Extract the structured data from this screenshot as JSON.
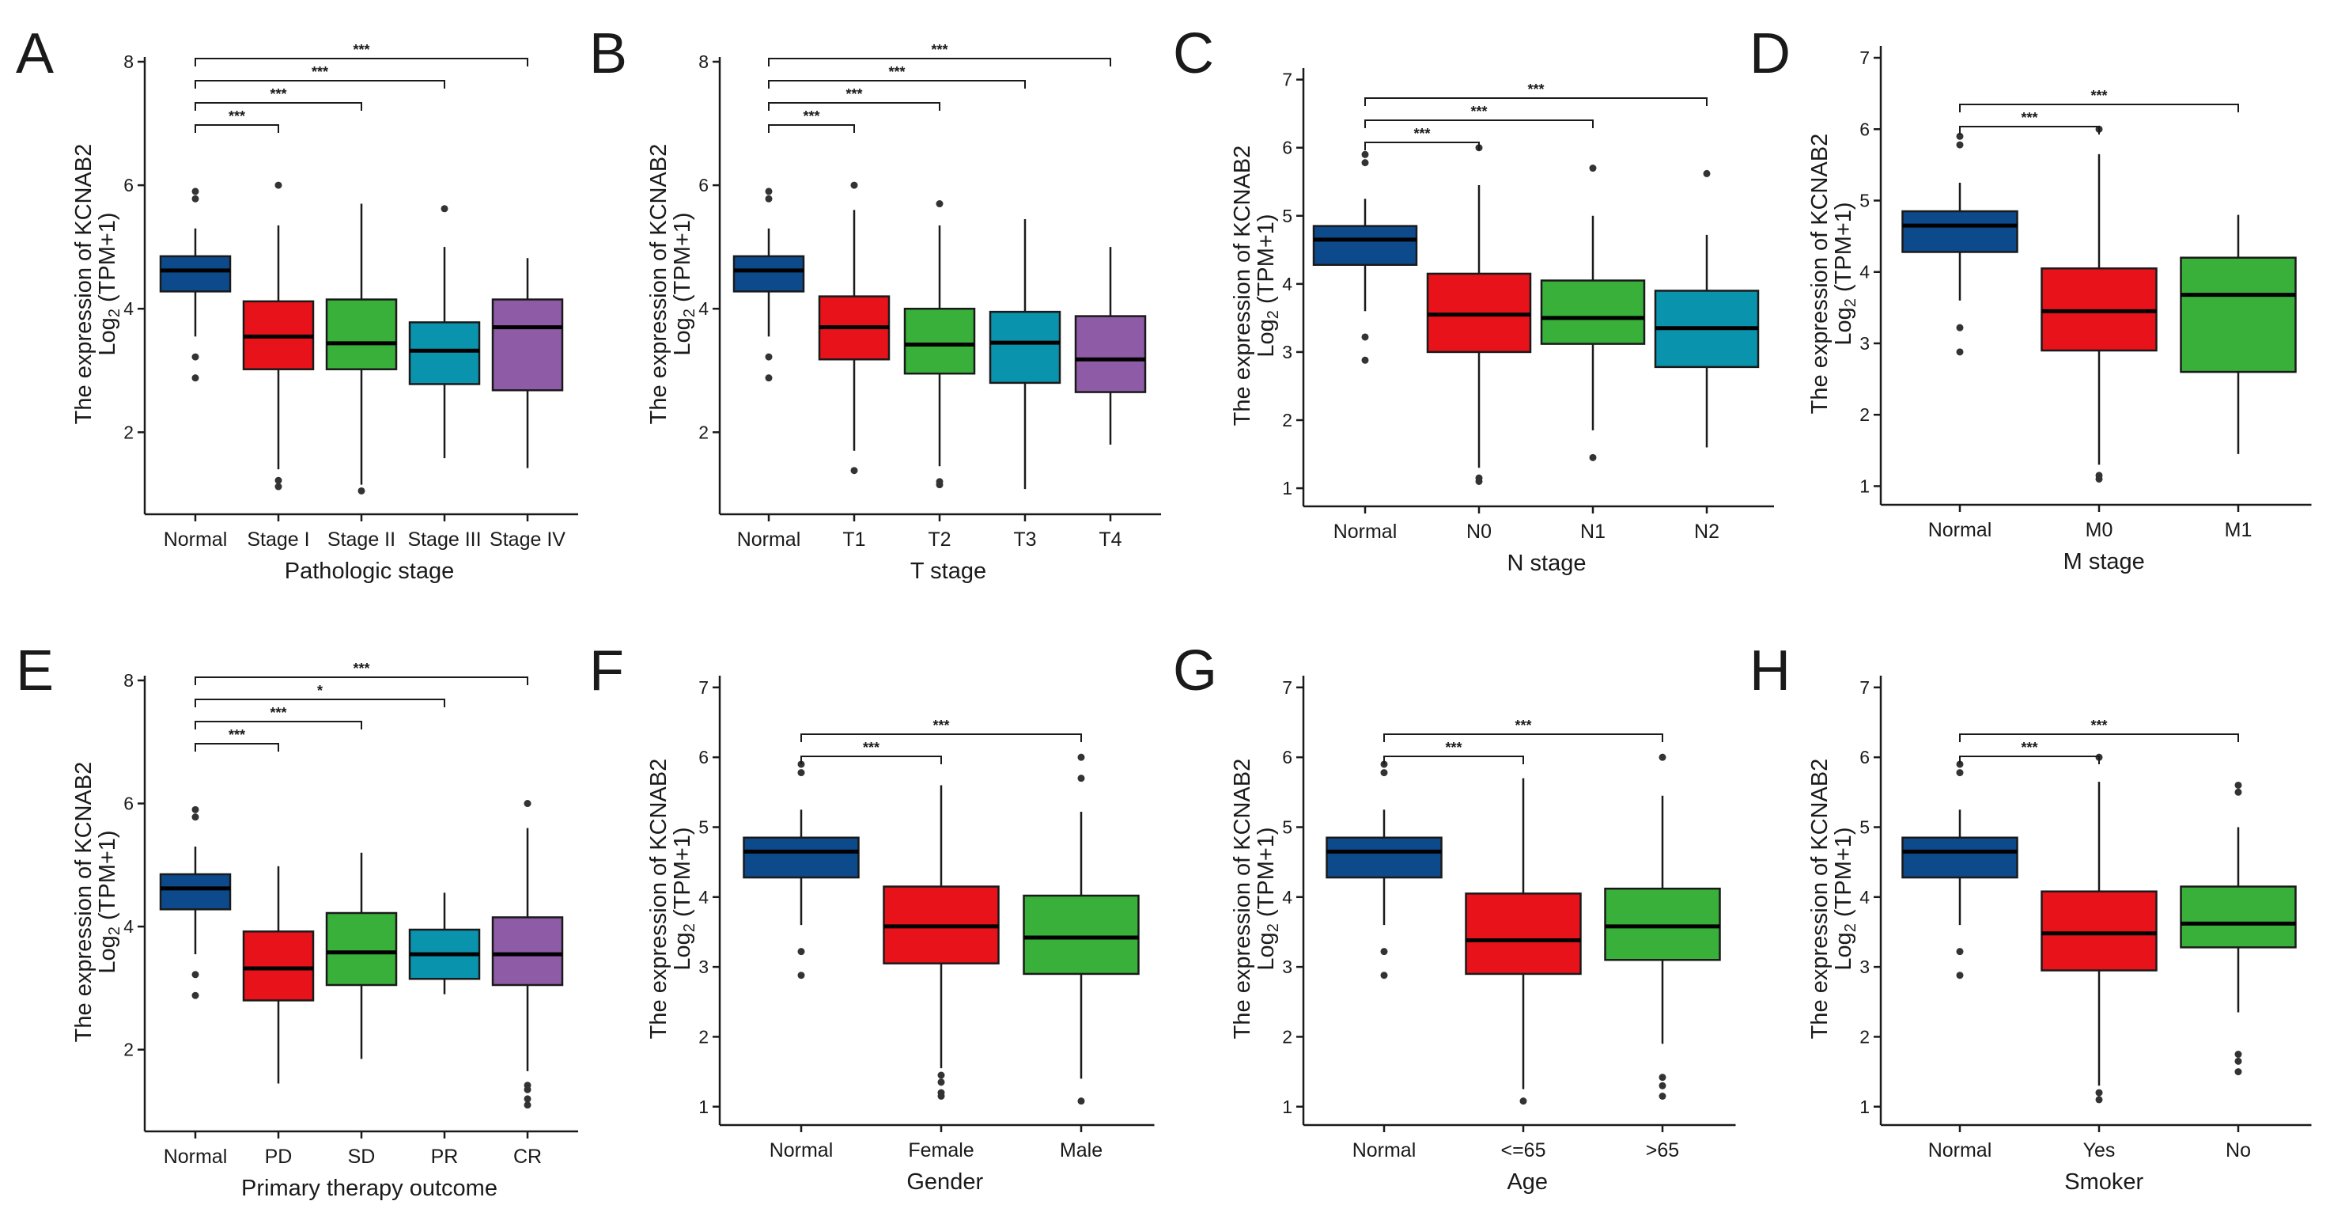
{
  "colors": {
    "normal": "#0d4a8c",
    "red": "#e8121a",
    "green": "#38b03a",
    "teal": "#0a93ad",
    "purple": "#8e5ba6"
  },
  "chart_data": [
    {
      "panel": "A",
      "type": "boxplot",
      "ylabel": "The expression of KCNAB2",
      "ylabel_sub": "Log2 (TPM+1)",
      "xlabel": "Pathologic stage",
      "ylim": [
        0.8,
        8
      ],
      "yticks": [
        2,
        4,
        6,
        8
      ],
      "categories": [
        "Normal",
        "Stage I",
        "Stage II",
        "Stage III",
        "Stage IV"
      ],
      "fill_keys": [
        "normal",
        "red",
        "green",
        "teal",
        "purple"
      ],
      "boxes": [
        {
          "q1": 4.28,
          "median": 4.62,
          "q3": 4.85,
          "lower": 3.55,
          "upper": 5.3,
          "outliers": [
            2.88,
            3.22,
            5.78,
            5.9
          ]
        },
        {
          "q1": 3.02,
          "median": 3.55,
          "q3": 4.12,
          "lower": 1.4,
          "upper": 5.35,
          "outliers": [
            1.12,
            1.22,
            6.0
          ]
        },
        {
          "q1": 3.02,
          "median": 3.44,
          "q3": 4.15,
          "lower": 1.15,
          "upper": 5.7,
          "outliers": [
            1.05
          ]
        },
        {
          "q1": 2.78,
          "median": 3.32,
          "q3": 3.78,
          "lower": 1.58,
          "upper": 5.0,
          "outliers": [
            5.62
          ]
        },
        {
          "q1": 2.68,
          "median": 3.7,
          "q3": 4.15,
          "lower": 1.42,
          "upper": 4.82,
          "outliers": []
        }
      ],
      "comparisons": [
        {
          "from": 0,
          "to": 1,
          "label": "***"
        },
        {
          "from": 0,
          "to": 2,
          "label": "***"
        },
        {
          "from": 0,
          "to": 3,
          "label": "***"
        },
        {
          "from": 0,
          "to": 4,
          "label": "***"
        }
      ]
    },
    {
      "panel": "B",
      "type": "boxplot",
      "ylabel": "The expression of KCNAB2",
      "ylabel_sub": "Log2 (TPM+1)",
      "xlabel": "T stage",
      "ylim": [
        0.8,
        8
      ],
      "yticks": [
        2,
        4,
        6,
        8
      ],
      "categories": [
        "Normal",
        "T1",
        "T2",
        "T3",
        "T4"
      ],
      "fill_keys": [
        "normal",
        "red",
        "green",
        "teal",
        "purple"
      ],
      "boxes": [
        {
          "q1": 4.28,
          "median": 4.62,
          "q3": 4.85,
          "lower": 3.55,
          "upper": 5.3,
          "outliers": [
            2.88,
            3.22,
            5.78,
            5.9
          ]
        },
        {
          "q1": 3.18,
          "median": 3.7,
          "q3": 4.2,
          "lower": 1.7,
          "upper": 5.6,
          "outliers": [
            1.38,
            6.0
          ]
        },
        {
          "q1": 2.95,
          "median": 3.42,
          "q3": 4.0,
          "lower": 1.45,
          "upper": 5.35,
          "outliers": [
            1.15,
            1.2,
            5.7
          ]
        },
        {
          "q1": 2.8,
          "median": 3.45,
          "q3": 3.95,
          "lower": 1.08,
          "upper": 5.45,
          "outliers": []
        },
        {
          "q1": 2.65,
          "median": 3.18,
          "q3": 3.88,
          "lower": 1.8,
          "upper": 5.0,
          "outliers": []
        }
      ],
      "comparisons": [
        {
          "from": 0,
          "to": 1,
          "label": "***"
        },
        {
          "from": 0,
          "to": 2,
          "label": "***"
        },
        {
          "from": 0,
          "to": 3,
          "label": "***"
        },
        {
          "from": 0,
          "to": 4,
          "label": "***"
        }
      ]
    },
    {
      "panel": "C",
      "type": "boxplot",
      "ylabel": "The expression of KCNAB2",
      "ylabel_sub": "Log2 (TPM+1)",
      "xlabel": "N stage",
      "ylim": [
        0.85,
        7.1
      ],
      "yticks": [
        1,
        2,
        3,
        4,
        5,
        6,
        7
      ],
      "categories": [
        "Normal",
        "N0",
        "N1",
        "N2"
      ],
      "fill_keys": [
        "normal",
        "red",
        "green",
        "teal"
      ],
      "boxes": [
        {
          "q1": 4.28,
          "median": 4.65,
          "q3": 4.85,
          "lower": 3.6,
          "upper": 5.25,
          "outliers": [
            2.88,
            3.22,
            5.78,
            5.9
          ]
        },
        {
          "q1": 3.0,
          "median": 3.55,
          "q3": 4.15,
          "lower": 1.3,
          "upper": 5.45,
          "outliers": [
            1.1,
            1.15,
            6.0
          ]
        },
        {
          "q1": 3.12,
          "median": 3.5,
          "q3": 4.05,
          "lower": 1.85,
          "upper": 5.0,
          "outliers": [
            1.45,
            5.7
          ]
        },
        {
          "q1": 2.78,
          "median": 3.35,
          "q3": 3.9,
          "lower": 1.6,
          "upper": 4.72,
          "outliers": [
            5.62
          ]
        }
      ],
      "comparisons": [
        {
          "from": 0,
          "to": 1,
          "label": "***"
        },
        {
          "from": 0,
          "to": 2,
          "label": "***"
        },
        {
          "from": 0,
          "to": 3,
          "label": "***"
        }
      ]
    },
    {
      "panel": "D",
      "type": "boxplot",
      "ylabel": "The expression of KCNAB2",
      "ylabel_sub": "Log2 (TPM+1)",
      "xlabel": "M stage",
      "ylim": [
        0.85,
        7.1
      ],
      "yticks": [
        1,
        2,
        3,
        4,
        5,
        6,
        7
      ],
      "categories": [
        "Normal",
        "M0",
        "M1"
      ],
      "fill_keys": [
        "normal",
        "red",
        "green"
      ],
      "boxes": [
        {
          "q1": 4.28,
          "median": 4.65,
          "q3": 4.85,
          "lower": 3.6,
          "upper": 5.25,
          "outliers": [
            2.88,
            3.22,
            5.78,
            5.9
          ]
        },
        {
          "q1": 2.9,
          "median": 3.45,
          "q3": 4.05,
          "lower": 1.3,
          "upper": 5.65,
          "outliers": [
            1.1,
            1.15,
            6.0
          ]
        },
        {
          "q1": 2.6,
          "median": 3.68,
          "q3": 4.2,
          "lower": 1.45,
          "upper": 4.8,
          "outliers": []
        }
      ],
      "comparisons": [
        {
          "from": 0,
          "to": 1,
          "label": "***"
        },
        {
          "from": 0,
          "to": 2,
          "label": "***"
        }
      ]
    },
    {
      "panel": "E",
      "type": "boxplot",
      "ylabel": "The expression of KCNAB2",
      "ylabel_sub": "Log2 (TPM+1)",
      "xlabel": "Primary therapy outcome",
      "ylim": [
        0.8,
        8
      ],
      "yticks": [
        2,
        4,
        6,
        8
      ],
      "categories": [
        "Normal",
        "PD",
        "SD",
        "PR",
        "CR"
      ],
      "fill_keys": [
        "normal",
        "red",
        "green",
        "teal",
        "purple"
      ],
      "boxes": [
        {
          "q1": 4.28,
          "median": 4.62,
          "q3": 4.85,
          "lower": 3.55,
          "upper": 5.3,
          "outliers": [
            2.88,
            3.22,
            5.78,
            5.9
          ]
        },
        {
          "q1": 2.8,
          "median": 3.32,
          "q3": 3.92,
          "lower": 1.45,
          "upper": 4.98,
          "outliers": []
        },
        {
          "q1": 3.05,
          "median": 3.58,
          "q3": 4.22,
          "lower": 1.85,
          "upper": 5.2,
          "outliers": []
        },
        {
          "q1": 3.15,
          "median": 3.55,
          "q3": 3.95,
          "lower": 2.9,
          "upper": 4.55,
          "outliers": []
        },
        {
          "q1": 3.05,
          "median": 3.55,
          "q3": 4.15,
          "lower": 1.65,
          "upper": 5.6,
          "outliers": [
            1.1,
            1.2,
            1.35,
            1.42,
            6.0
          ]
        }
      ],
      "comparisons": [
        {
          "from": 0,
          "to": 1,
          "label": "***"
        },
        {
          "from": 0,
          "to": 2,
          "label": "***"
        },
        {
          "from": 0,
          "to": 3,
          "label": "*"
        },
        {
          "from": 0,
          "to": 4,
          "label": "***"
        }
      ]
    },
    {
      "panel": "F",
      "type": "boxplot",
      "ylabel": "The expression of KCNAB2",
      "ylabel_sub": "Log2 (TPM+1)",
      "xlabel": "Gender",
      "ylim": [
        0.85,
        7.1
      ],
      "yticks": [
        1,
        2,
        3,
        4,
        5,
        6,
        7
      ],
      "categories": [
        "Normal",
        "Female",
        "Male"
      ],
      "fill_keys": [
        "normal",
        "red",
        "green"
      ],
      "boxes": [
        {
          "q1": 4.28,
          "median": 4.65,
          "q3": 4.85,
          "lower": 3.6,
          "upper": 5.25,
          "outliers": [
            2.88,
            3.22,
            5.78,
            5.9
          ]
        },
        {
          "q1": 3.05,
          "median": 3.58,
          "q3": 4.15,
          "lower": 1.55,
          "upper": 5.6,
          "outliers": [
            1.15,
            1.2,
            1.35,
            1.45
          ]
        },
        {
          "q1": 2.9,
          "median": 3.42,
          "q3": 4.02,
          "lower": 1.4,
          "upper": 5.22,
          "outliers": [
            1.08,
            5.7,
            6.0
          ]
        }
      ],
      "comparisons": [
        {
          "from": 0,
          "to": 1,
          "label": "***"
        },
        {
          "from": 0,
          "to": 2,
          "label": "***"
        }
      ]
    },
    {
      "panel": "G",
      "type": "boxplot",
      "ylabel": "The expression of KCNAB2",
      "ylabel_sub": "Log2 (TPM+1)",
      "xlabel": "Age",
      "ylim": [
        0.85,
        7.1
      ],
      "yticks": [
        1,
        2,
        3,
        4,
        5,
        6,
        7
      ],
      "categories": [
        "Normal",
        "<=65",
        ">65"
      ],
      "fill_keys": [
        "normal",
        "red",
        "green"
      ],
      "boxes": [
        {
          "q1": 4.28,
          "median": 4.65,
          "q3": 4.85,
          "lower": 3.6,
          "upper": 5.25,
          "outliers": [
            2.88,
            3.22,
            5.78,
            5.9
          ]
        },
        {
          "q1": 2.9,
          "median": 3.38,
          "q3": 4.05,
          "lower": 1.25,
          "upper": 5.7,
          "outliers": [
            1.08
          ]
        },
        {
          "q1": 3.1,
          "median": 3.58,
          "q3": 4.12,
          "lower": 1.9,
          "upper": 5.45,
          "outliers": [
            1.15,
            1.3,
            1.42,
            6.0
          ]
        }
      ],
      "comparisons": [
        {
          "from": 0,
          "to": 1,
          "label": "***"
        },
        {
          "from": 0,
          "to": 2,
          "label": "***"
        }
      ]
    },
    {
      "panel": "H",
      "type": "boxplot",
      "ylabel": "The expression of KCNAB2",
      "ylabel_sub": "Log2 (TPM+1)",
      "xlabel": "Smoker",
      "ylim": [
        0.85,
        7.1
      ],
      "yticks": [
        1,
        2,
        3,
        4,
        5,
        6,
        7
      ],
      "categories": [
        "Normal",
        "Yes",
        "No"
      ],
      "fill_keys": [
        "normal",
        "red",
        "green"
      ],
      "boxes": [
        {
          "q1": 4.28,
          "median": 4.65,
          "q3": 4.85,
          "lower": 3.6,
          "upper": 5.25,
          "outliers": [
            2.88,
            3.22,
            5.78,
            5.9
          ]
        },
        {
          "q1": 2.95,
          "median": 3.48,
          "q3": 4.08,
          "lower": 1.3,
          "upper": 5.65,
          "outliers": [
            1.1,
            1.2,
            6.0
          ]
        },
        {
          "q1": 3.28,
          "median": 3.62,
          "q3": 4.15,
          "lower": 2.35,
          "upper": 5.0,
          "outliers": [
            1.5,
            1.65,
            1.75,
            5.5,
            5.6
          ]
        }
      ],
      "comparisons": [
        {
          "from": 0,
          "to": 1,
          "label": "***"
        },
        {
          "from": 0,
          "to": 2,
          "label": "***"
        }
      ]
    }
  ]
}
